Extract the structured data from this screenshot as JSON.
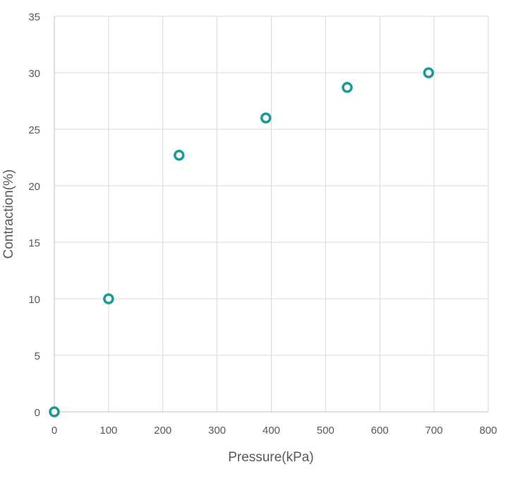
{
  "chart_data": {
    "type": "scatter",
    "title": "",
    "xlabel": "Pressure(kPa)",
    "ylabel": "Contraction(%)",
    "xlim": [
      0,
      800
    ],
    "ylim": [
      0,
      35
    ],
    "x_ticks": [
      0,
      100,
      200,
      300,
      400,
      500,
      600,
      700,
      800
    ],
    "y_ticks": [
      0,
      5,
      10,
      15,
      20,
      25,
      30,
      35
    ],
    "grid": true,
    "legend": "none",
    "series": [
      {
        "color": "#1a9a94",
        "points": [
          {
            "x": 0,
            "y": 0
          },
          {
            "x": 100,
            "y": 10
          },
          {
            "x": 230,
            "y": 22.7
          },
          {
            "x": 390,
            "y": 26
          },
          {
            "x": 540,
            "y": 28.7
          },
          {
            "x": 690,
            "y": 30
          }
        ]
      }
    ]
  }
}
